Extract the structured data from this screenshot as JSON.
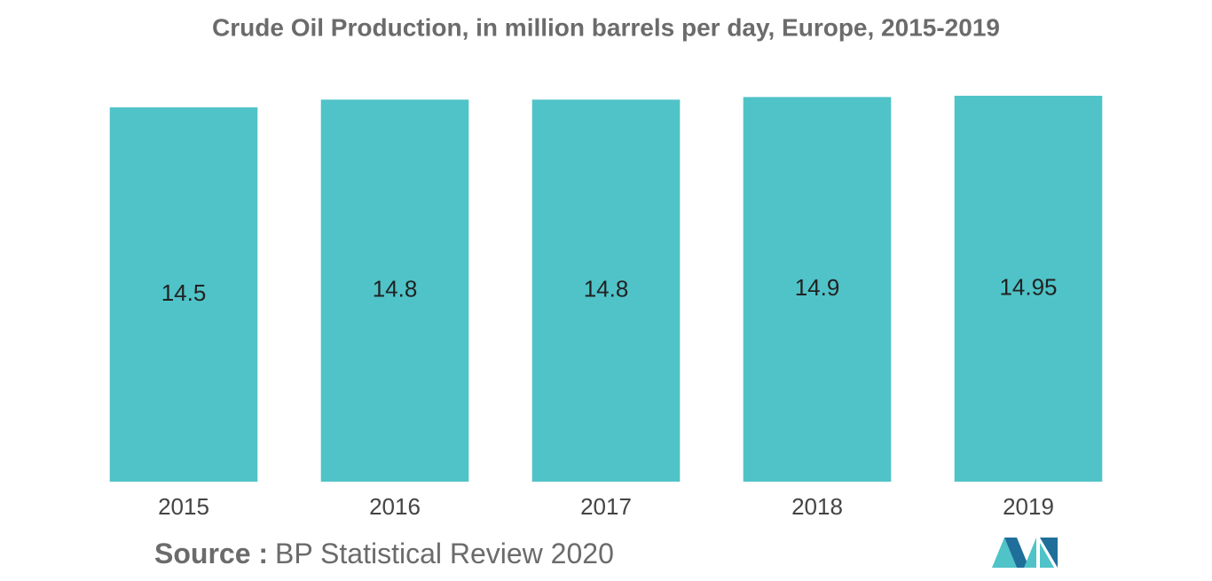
{
  "chart_data": {
    "type": "bar",
    "title": "Crude Oil Production, in million barrels per day, Europe, 2015-2019",
    "categories": [
      "2015",
      "2016",
      "2017",
      "2018",
      "2019"
    ],
    "values": [
      14.5,
      14.8,
      14.8,
      14.9,
      14.95
    ],
    "color": "#4fc3c8",
    "ylim": [
      0,
      15
    ],
    "source_label": "Source :",
    "source_text": "BP Statistical Review 2020"
  }
}
